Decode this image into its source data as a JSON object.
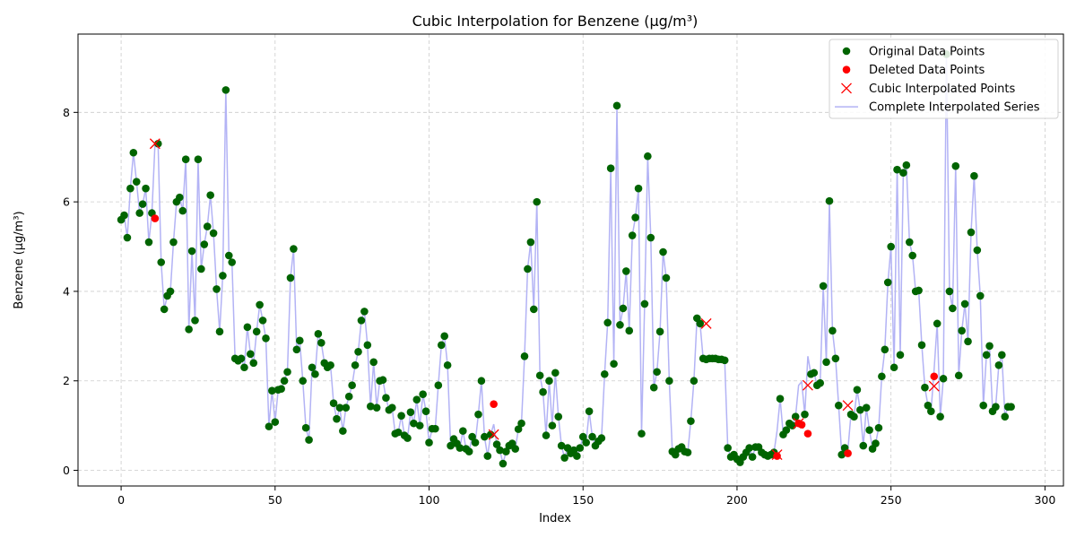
{
  "chart_data": {
    "type": "line",
    "title": "Cubic Interpolation for Benzene (µg/m³)",
    "xlabel": "Index",
    "ylabel": "Benzene (µg/m³)",
    "xlim": [
      -14,
      306
    ],
    "ylim": [
      -0.35,
      9.75
    ],
    "xticks": [
      0,
      50,
      100,
      150,
      200,
      250,
      300
    ],
    "yticks": [
      0,
      2,
      4,
      6,
      8
    ],
    "xtick_labels": [
      "0",
      "50",
      "100",
      "150",
      "200",
      "250",
      "300"
    ],
    "ytick_labels": [
      "0",
      "2",
      "4",
      "6",
      "8"
    ],
    "grid": true,
    "legend_position": "top-right",
    "colors": {
      "original": "#006400",
      "deleted": "#ff0000",
      "interpolated": "#ff0000",
      "series_line": "#b3b3f5",
      "grid": "#cccccc"
    },
    "legend": [
      {
        "label": "Original Data Points",
        "marker": "circle",
        "color": "#006400"
      },
      {
        "label": "Deleted Data Points",
        "marker": "circle",
        "color": "#ff0000"
      },
      {
        "label": "Cubic Interpolated Points",
        "marker": "x",
        "color": "#ff0000"
      },
      {
        "label": "Complete Interpolated Series",
        "marker": "line",
        "color": "#b3b3f5"
      }
    ],
    "complete_series": [
      5.6,
      5.7,
      5.2,
      6.3,
      7.1,
      6.45,
      5.75,
      5.95,
      6.3,
      5.1,
      5.75,
      7.3,
      7.3,
      4.65,
      3.6,
      3.9,
      4.0,
      5.1,
      6.0,
      6.1,
      5.8,
      6.95,
      3.15,
      4.9,
      3.35,
      6.95,
      4.5,
      5.05,
      5.45,
      6.15,
      5.3,
      4.05,
      3.1,
      4.35,
      8.5,
      4.8,
      4.65,
      2.5,
      2.45,
      2.5,
      2.3,
      3.2,
      2.6,
      2.4,
      3.1,
      3.7,
      3.35,
      2.95,
      0.98,
      1.78,
      1.08,
      1.8,
      1.82,
      2.0,
      2.2,
      4.3,
      4.95,
      2.7,
      2.9,
      2.0,
      0.95,
      0.68,
      2.3,
      2.15,
      3.05,
      2.85,
      2.4,
      2.3,
      2.35,
      1.5,
      1.15,
      1.4,
      0.88,
      1.4,
      1.65,
      1.9,
      2.35,
      2.65,
      3.35,
      3.55,
      2.8,
      1.43,
      2.42,
      1.4,
      2.0,
      2.02,
      1.62,
      1.35,
      1.4,
      0.82,
      0.85,
      1.22,
      0.78,
      0.72,
      1.3,
      1.05,
      1.58,
      1.0,
      1.7,
      1.32,
      0.62,
      0.93,
      0.93,
      1.9,
      2.8,
      3.0,
      2.35,
      0.55,
      0.7,
      0.6,
      0.5,
      0.88,
      0.48,
      0.42,
      0.75,
      0.62,
      1.25,
      2.0,
      0.75,
      0.32,
      0.8,
      1.03,
      0.58,
      0.45,
      0.15,
      0.42,
      0.55,
      0.6,
      0.48,
      0.92,
      1.05,
      2.55,
      4.5,
      5.1,
      3.6,
      6.0,
      2.12,
      1.75,
      0.78,
      2.0,
      1.0,
      2.18,
      1.2,
      0.55,
      0.28,
      0.5,
      0.38,
      0.45,
      0.32,
      0.5,
      0.75,
      0.62,
      1.32,
      0.75,
      0.55,
      0.65,
      0.72,
      2.15,
      3.3,
      6.75,
      2.38,
      8.15,
      3.25,
      3.62,
      4.45,
      3.12,
      5.25,
      5.65,
      6.3,
      0.82,
      3.72,
      7.02,
      5.2,
      1.85,
      2.2,
      3.1,
      4.88,
      4.3,
      2.0,
      0.42,
      0.35,
      0.48,
      0.52,
      0.42,
      0.4,
      1.1,
      2.0,
      3.4,
      3.28,
      2.5,
      2.48,
      2.5,
      2.5,
      2.5,
      2.48,
      2.48,
      2.46,
      0.5,
      0.3,
      0.35,
      0.25,
      0.18,
      0.3,
      0.4,
      0.5,
      0.3,
      0.52,
      0.52,
      0.4,
      0.35,
      0.32,
      0.35,
      0.4,
      0.88,
      1.6,
      0.8,
      0.9,
      1.05,
      1.0,
      1.2,
      1.9,
      1.98,
      1.25,
      2.55,
      2.15,
      2.18,
      1.9,
      1.95,
      4.12,
      2.42,
      6.02,
      3.12,
      2.5,
      1.45,
      0.35,
      0.5,
      0.45,
      1.25,
      1.2,
      1.8,
      1.35,
      0.55,
      1.4,
      0.9,
      0.48,
      0.6,
      0.95,
      2.1,
      2.7,
      4.2,
      5.0,
      2.3,
      6.72,
      2.58,
      6.65,
      6.82,
      5.1,
      4.8,
      4.0,
      4.02,
      2.8,
      1.85,
      1.45,
      1.32,
      2.25,
      3.28,
      1.2,
      2.05,
      9.3,
      4.0,
      3.62,
      6.8,
      2.12,
      3.12,
      3.72,
      2.88,
      5.32,
      6.58,
      4.92,
      3.9,
      1.45,
      2.58,
      2.78,
      1.32,
      1.42,
      2.35,
      2.58,
      1.2,
      1.42,
      1.42
    ],
    "deleted_points": [
      {
        "x": 11,
        "y": 5.63
      },
      {
        "x": 121,
        "y": 1.48
      },
      {
        "x": 213,
        "y": 0.32
      },
      {
        "x": 220,
        "y": 1.05
      },
      {
        "x": 221,
        "y": 1.02
      },
      {
        "x": 223,
        "y": 0.82
      },
      {
        "x": 236,
        "y": 0.38
      },
      {
        "x": 264,
        "y": 2.1
      }
    ],
    "interpolated_points": [
      {
        "x": 11,
        "y": 7.3
      },
      {
        "x": 121,
        "y": 0.8
      },
      {
        "x": 190,
        "y": 3.28
      },
      {
        "x": 213,
        "y": 0.35
      },
      {
        "x": 220,
        "y": 1.05
      },
      {
        "x": 223,
        "y": 1.9
      },
      {
        "x": 236,
        "y": 1.45
      },
      {
        "x": 264,
        "y": 1.88
      }
    ]
  }
}
